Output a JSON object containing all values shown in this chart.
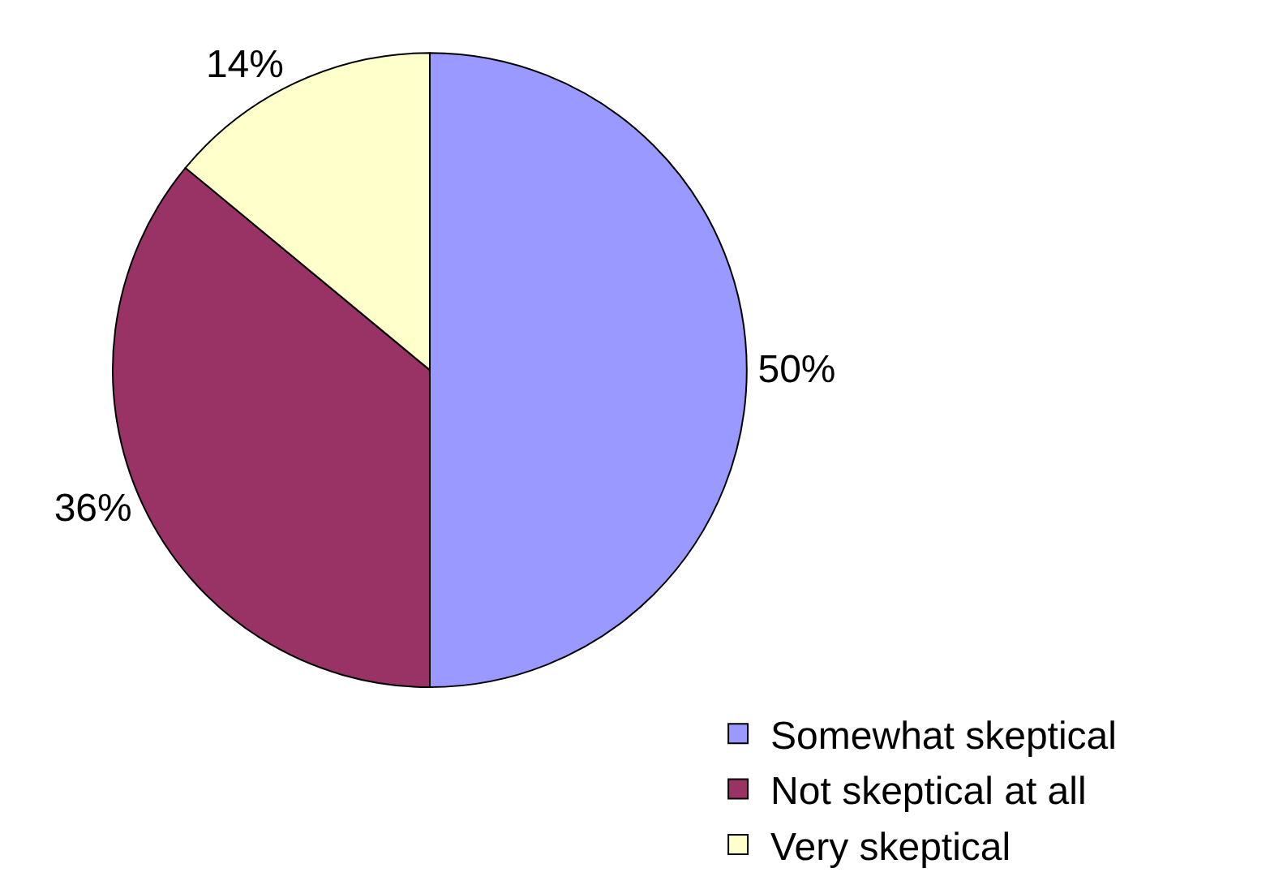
{
  "chart_data": {
    "type": "pie",
    "categories": [
      "Somewhat skeptical",
      "Not skeptical at all",
      "Very skeptical"
    ],
    "values": [
      50,
      36,
      14
    ],
    "colors": [
      "#9999ff",
      "#993366",
      "#ffffcc"
    ],
    "value_labels": [
      "50%",
      "36%",
      "14%"
    ],
    "legend": "bottom right"
  }
}
